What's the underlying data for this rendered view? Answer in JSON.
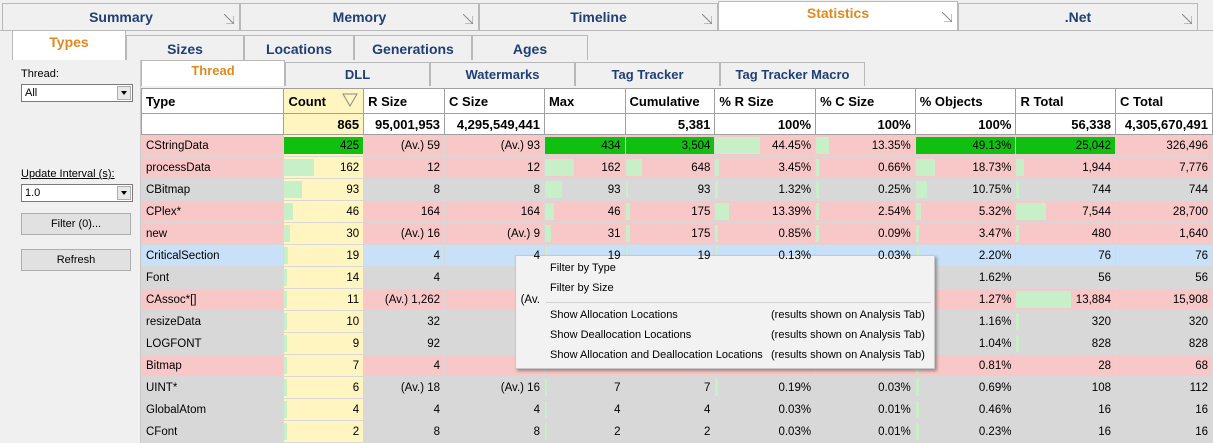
{
  "top_tabs": [
    {
      "label": "Summary",
      "active": false
    },
    {
      "label": "Memory",
      "active": false
    },
    {
      "label": "Timeline",
      "active": false
    },
    {
      "label": "Statistics",
      "active": true
    },
    {
      "label": ".Net",
      "active": false
    }
  ],
  "sub_tabs": [
    "Types",
    "Sizes",
    "Locations",
    "Generations",
    "Ages"
  ],
  "sub_tabs2": [
    "Thread",
    "DLL",
    "Watermarks",
    "Tag Tracker",
    "Tag Tracker Macro"
  ],
  "left": {
    "thread_label": "Thread:",
    "thread_value": "All",
    "interval_label": "Update Interval (s):",
    "interval_value": "1.0",
    "filter_button": "Filter (0)...",
    "refresh_button": "Refresh"
  },
  "table": {
    "columns": [
      "Type",
      "Count",
      "R Size",
      "C Size",
      "Max",
      "Cumulative",
      "% R Size",
      "% C Size",
      "% Objects",
      "R Total",
      "C Total"
    ],
    "totals": [
      "",
      "865",
      "95,001,953",
      "4,295,549,441",
      "",
      "5,381",
      "100%",
      "100%",
      "100%",
      "56,338",
      "4,305,670,491"
    ],
    "rows": [
      {
        "type": "CStringData",
        "color": "#f8c8c8",
        "count": "425",
        "count_fill": 1.0,
        "rsize": "(Av.) 59",
        "csize": "(Av.) 93",
        "max": "434",
        "max_fill": 1.0,
        "cum": "3,504",
        "cum_fill": 1.0,
        "prs": "44.45%",
        "prs_fill": 0.445,
        "pcs": "13.35%",
        "pcs_fill": 0.134,
        "pobj": "49.13%",
        "pobj_fill": 1.0,
        "rtot": "25,042",
        "rtot_fill": 1.0,
        "ctot": "326,496"
      },
      {
        "type": "processData",
        "color": "#f8c8c8",
        "count": "162",
        "count_fill": 0.38,
        "rsize": "12",
        "csize": "12",
        "max": "162",
        "max_fill": 0.37,
        "cum": "648",
        "cum_fill": 0.18,
        "prs": "3.45%",
        "prs_fill": 0.035,
        "pcs": "0.66%",
        "pcs_fill": 0.007,
        "pobj": "18.73%",
        "pobj_fill": 0.19,
        "rtot": "1,944",
        "rtot_fill": 0.08,
        "ctot": "7,776"
      },
      {
        "type": "CBitmap",
        "color": "#d8d8d8",
        "count": "93",
        "count_fill": 0.22,
        "rsize": "8",
        "csize": "8",
        "max": "93",
        "max_fill": 0.21,
        "cum": "93",
        "cum_fill": 0.03,
        "prs": "1.32%",
        "prs_fill": 0.013,
        "pcs": "0.25%",
        "pcs_fill": 0.003,
        "pobj": "10.75%",
        "pobj_fill": 0.11,
        "rtot": "744",
        "rtot_fill": 0.03,
        "ctot": "744"
      },
      {
        "type": "CPlex*",
        "color": "#f8c8c8",
        "count": "46",
        "count_fill": 0.11,
        "rsize": "164",
        "csize": "164",
        "max": "46",
        "max_fill": 0.11,
        "cum": "175",
        "cum_fill": 0.05,
        "prs": "13.39%",
        "prs_fill": 0.134,
        "pcs": "2.54%",
        "pcs_fill": 0.025,
        "pobj": "5.32%",
        "pobj_fill": 0.05,
        "rtot": "7,544",
        "rtot_fill": 0.3,
        "ctot": "28,700"
      },
      {
        "type": "new",
        "color": "#f8c8c8",
        "count": "30",
        "count_fill": 0.07,
        "rsize": "(Av.) 16",
        "csize": "(Av.) 9",
        "max": "31",
        "max_fill": 0.07,
        "cum": "175",
        "cum_fill": 0.05,
        "prs": "0.85%",
        "prs_fill": 0.009,
        "pcs": "0.09%",
        "pcs_fill": 0.001,
        "pobj": "3.47%",
        "pobj_fill": 0.035,
        "rtot": "480",
        "rtot_fill": 0.02,
        "ctot": "1,640"
      },
      {
        "type": "CriticalSection",
        "color": "#c8e0f8",
        "count": "19",
        "count_fill": 0.04,
        "rsize": "4",
        "csize": "4",
        "max": "19",
        "max_fill": 0.04,
        "cum": "19",
        "cum_fill": 0.01,
        "prs": "0.13%",
        "prs_fill": 0.001,
        "pcs": "0.03%",
        "pcs_fill": 0.0,
        "pobj": "2.20%",
        "pobj_fill": 0.02,
        "rtot": "76",
        "rtot_fill": 0.0,
        "ctot": "76"
      },
      {
        "type": "Font",
        "color": "#d8d8d8",
        "count": "14",
        "count_fill": 0.03,
        "rsize": "4",
        "csize": "",
        "max": "",
        "max_fill": 0,
        "cum": "",
        "cum_fill": 0,
        "prs": "",
        "prs_fill": 0,
        "pcs": "",
        "pcs_fill": 0,
        "pobj": "1.62%",
        "pobj_fill": 0.016,
        "rtot": "56",
        "rtot_fill": 0.0,
        "ctot": "56"
      },
      {
        "type": "CAssoc*[]",
        "color": "#f8c8c8",
        "count": "11",
        "count_fill": 0.03,
        "rsize": "(Av.) 1,262",
        "csize": "(Av.",
        "max": "",
        "max_fill": 0,
        "cum": "",
        "cum_fill": 0,
        "prs": "",
        "prs_fill": 0,
        "pcs": "",
        "pcs_fill": 0,
        "pobj": "1.27%",
        "pobj_fill": 0.013,
        "rtot": "13,884",
        "rtot_fill": 0.55,
        "ctot": "15,908"
      },
      {
        "type": "resizeData",
        "color": "#d8d8d8",
        "count": "10",
        "count_fill": 0.02,
        "rsize": "32",
        "csize": "",
        "max": "",
        "max_fill": 0,
        "cum": "",
        "cum_fill": 0,
        "prs": "",
        "prs_fill": 0,
        "pcs": "",
        "pcs_fill": 0,
        "pobj": "1.16%",
        "pobj_fill": 0.012,
        "rtot": "320",
        "rtot_fill": 0.01,
        "ctot": "320"
      },
      {
        "type": "LOGFONT",
        "color": "#d8d8d8",
        "count": "9",
        "count_fill": 0.02,
        "rsize": "92",
        "csize": "",
        "max": "",
        "max_fill": 0,
        "cum": "",
        "cum_fill": 0,
        "prs": "",
        "prs_fill": 0,
        "pcs": "",
        "pcs_fill": 0,
        "pobj": "1.04%",
        "pobj_fill": 0.01,
        "rtot": "828",
        "rtot_fill": 0.03,
        "ctot": "828"
      },
      {
        "type": "Bitmap",
        "color": "#f8c8c8",
        "count": "7",
        "count_fill": 0.02,
        "rsize": "4",
        "csize": "",
        "max": "",
        "max_fill": 0,
        "cum": "",
        "cum_fill": 0,
        "prs": "",
        "prs_fill": 0,
        "pcs": "",
        "pcs_fill": 0,
        "pobj": "0.81%",
        "pobj_fill": 0.008,
        "rtot": "28",
        "rtot_fill": 0.0,
        "ctot": "68"
      },
      {
        "type": "UINT*",
        "color": "#d8d8d8",
        "count": "6",
        "count_fill": 0.01,
        "rsize": "(Av.) 18",
        "csize": "(Av.) 16",
        "max": "7",
        "max_fill": 0.02,
        "cum": "7",
        "cum_fill": 0.0,
        "prs": "0.19%",
        "prs_fill": 0.002,
        "pcs": "0.03%",
        "pcs_fill": 0.0,
        "pobj": "0.69%",
        "pobj_fill": 0.007,
        "rtot": "108",
        "rtot_fill": 0.0,
        "ctot": "112"
      },
      {
        "type": "GlobalAtom",
        "color": "#d8d8d8",
        "count": "4",
        "count_fill": 0.01,
        "rsize": "4",
        "csize": "4",
        "max": "4",
        "max_fill": 0.01,
        "cum": "4",
        "cum_fill": 0.0,
        "prs": "0.03%",
        "prs_fill": 0.0,
        "pcs": "0.01%",
        "pcs_fill": 0.0,
        "pobj": "0.46%",
        "pobj_fill": 0.005,
        "rtot": "16",
        "rtot_fill": 0.0,
        "ctot": "16"
      },
      {
        "type": "CFont",
        "color": "#d8d8d8",
        "count": "2",
        "count_fill": 0.005,
        "rsize": "8",
        "csize": "8",
        "max": "2",
        "max_fill": 0.005,
        "cum": "2",
        "cum_fill": 0.0,
        "prs": "0.03%",
        "prs_fill": 0.0,
        "pcs": "0.01%",
        "pcs_fill": 0.0,
        "pobj": "0.23%",
        "pobj_fill": 0.002,
        "rtot": "16",
        "rtot_fill": 0.0,
        "ctot": "16"
      }
    ],
    "partial_under_menu": {
      "CriticalSection": {
        "max": "19",
        "cum": "19",
        "prs": "0.13%",
        "pcs": "0.03%"
      }
    }
  },
  "context_menu": {
    "items": [
      {
        "label": "Filter by Type",
        "hint": ""
      },
      {
        "label": "Filter by Size",
        "hint": ""
      },
      {
        "label": "Show Allocation Locations",
        "hint": "(results shown on Analysis Tab)"
      },
      {
        "label": "Show Deallocation Locations",
        "hint": "(results shown on Analysis Tab)"
      },
      {
        "label": "Show Allocation and Deallocation Locations",
        "hint": "(results shown on Analysis Tab)"
      }
    ]
  }
}
